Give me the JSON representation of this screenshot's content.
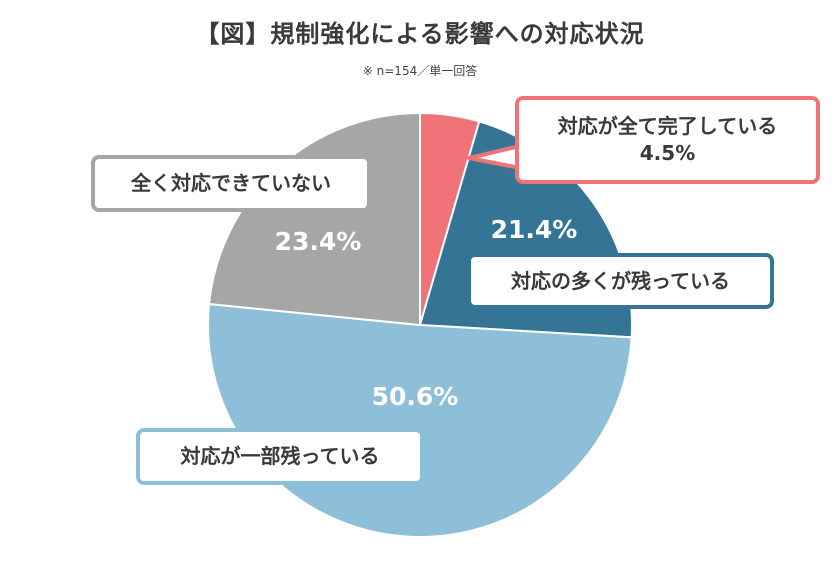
{
  "title": "【図】規制強化による影響への対応状況",
  "subtitle": "※ n=154／単一回答",
  "chart_data": {
    "type": "pie",
    "title": "【図】規制強化による影響への対応状況",
    "subtitle": "※ n=154／単一回答",
    "start": "12 o'clock, clockwise",
    "slices": [
      {
        "label": "対応が全て完了している",
        "value": 4.5,
        "display": "4.5%",
        "color": "#f07378"
      },
      {
        "label": "対応の多くが残っている",
        "value": 21.4,
        "display": "21.4%",
        "color": "#347595"
      },
      {
        "label": "対応が一部残っている",
        "value": 50.6,
        "display": "50.6%",
        "color": "#8ebfd8"
      },
      {
        "label": "全く対応できていない",
        "value": 23.4,
        "display": "23.4%",
        "color": "#a6a6a6"
      }
    ]
  }
}
